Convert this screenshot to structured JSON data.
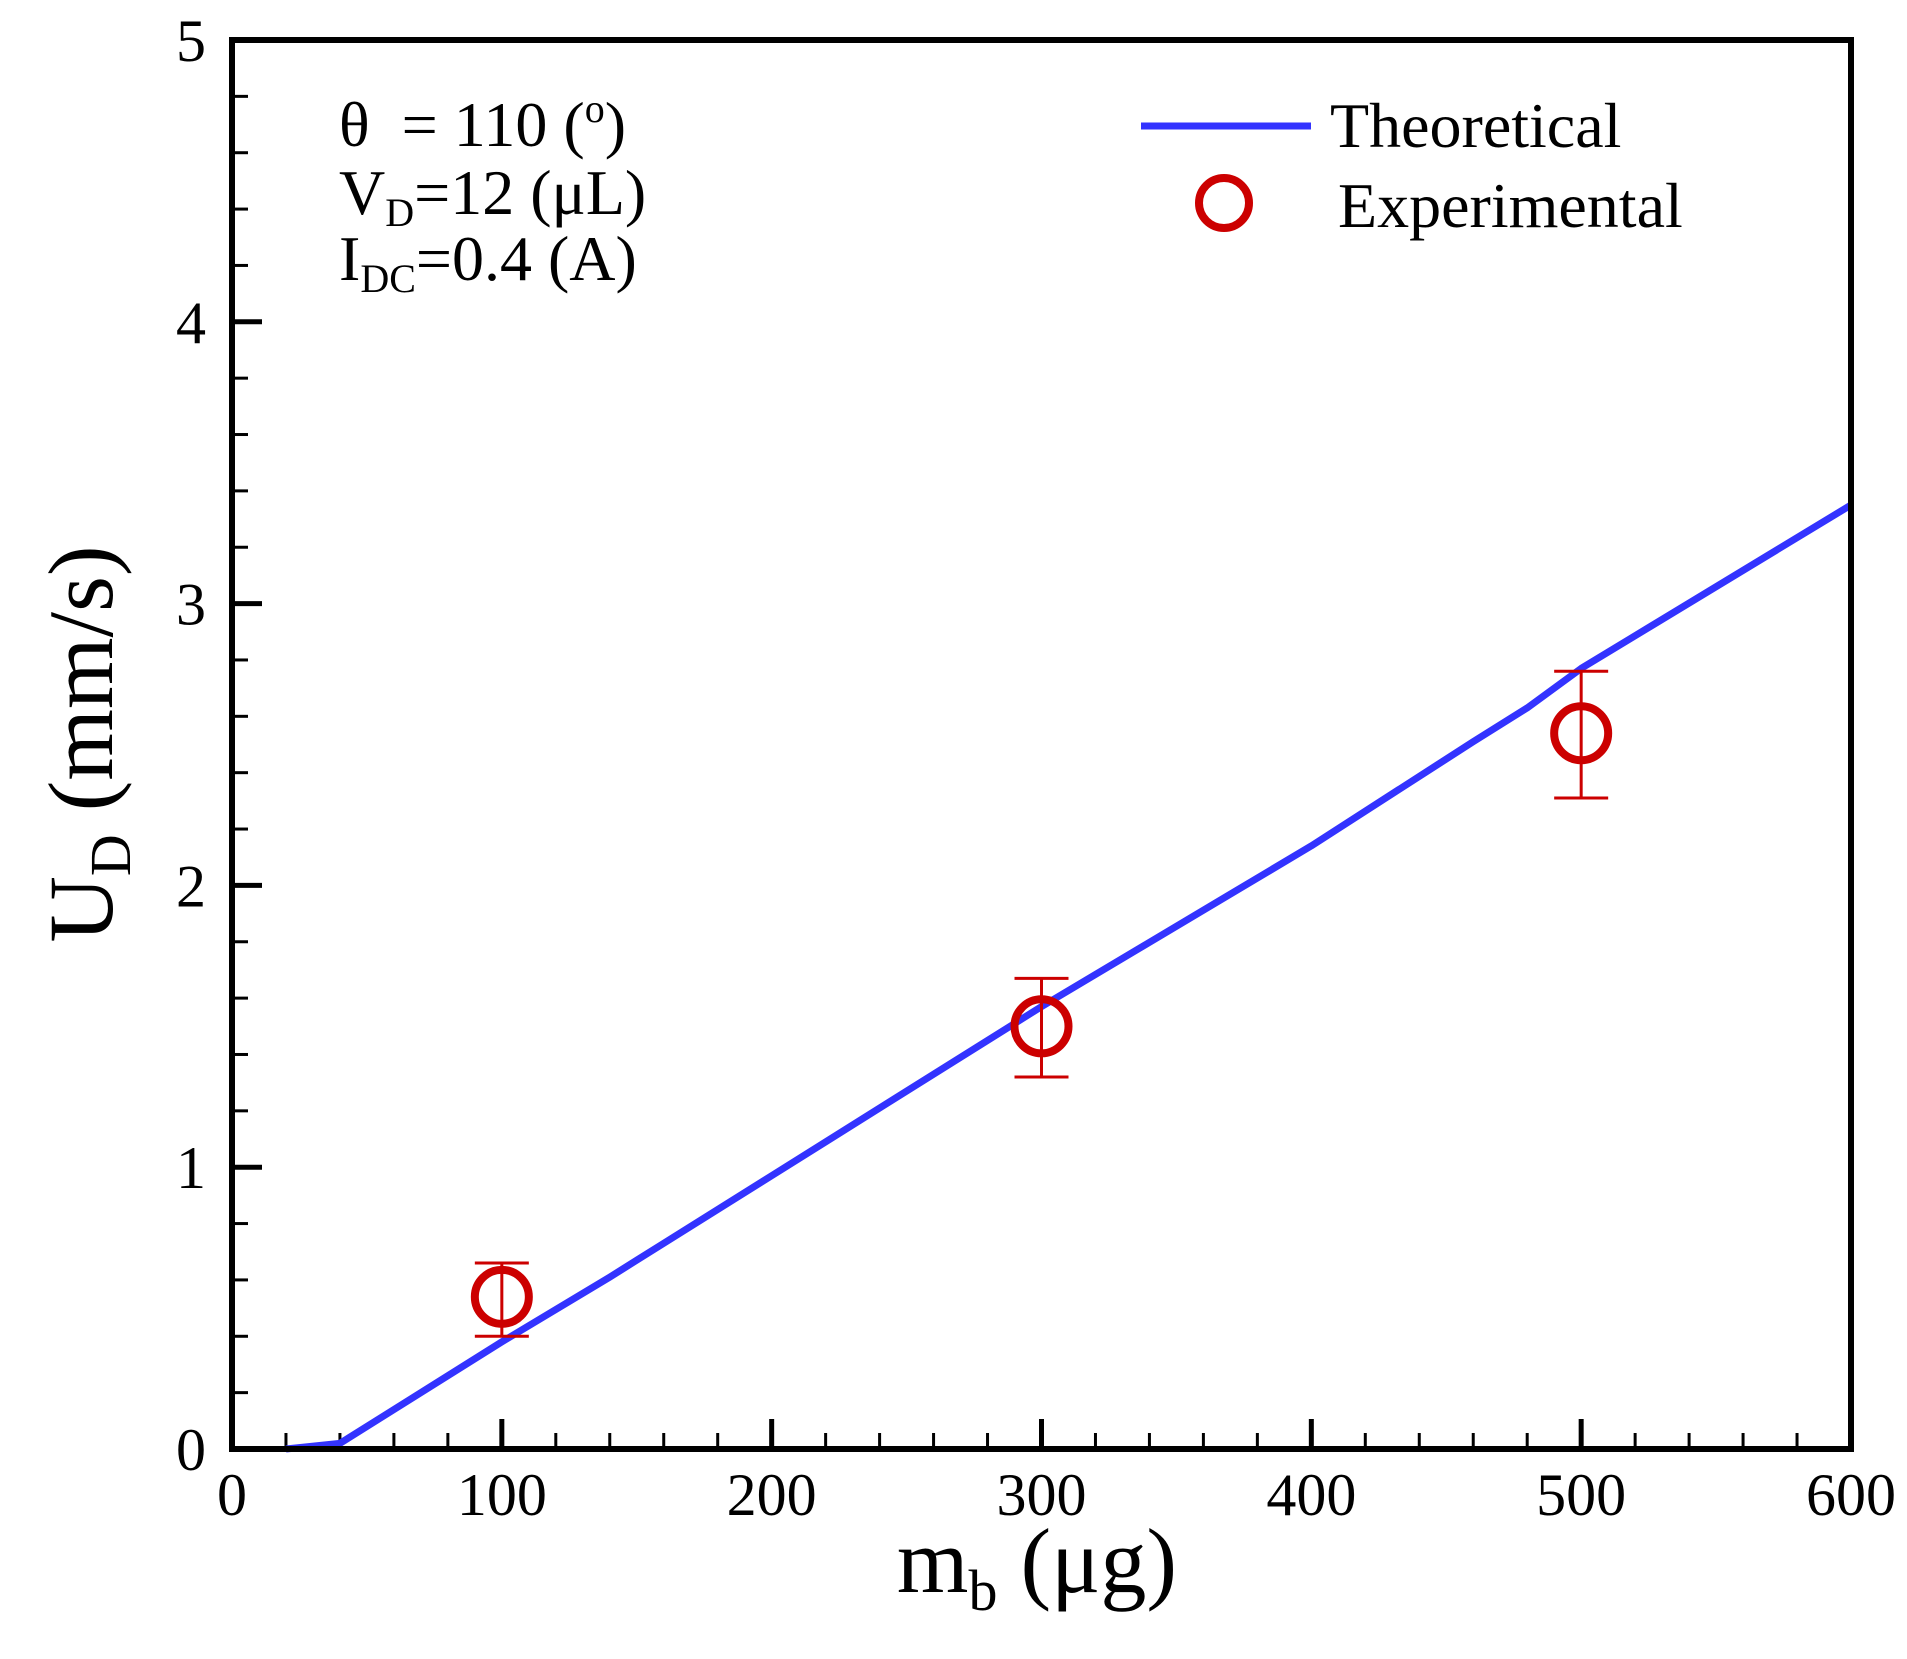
{
  "chart_data": {
    "type": "line",
    "xlabel": {
      "main": "m",
      "sub": "b",
      "rest": " (μg)"
    },
    "ylabel": {
      "main": "U",
      "sub": "D",
      "rest": " (mm/s)"
    },
    "xlim": [
      0,
      600
    ],
    "ylim": [
      0,
      5
    ],
    "xticks": [
      0,
      100,
      200,
      300,
      400,
      500,
      600
    ],
    "xtick_labels": [
      "0",
      "100",
      "200",
      "300",
      "400",
      "500",
      "600"
    ],
    "yticks": [
      0,
      1,
      2,
      3,
      4,
      5
    ],
    "ytick_labels": [
      "0",
      "1",
      "2",
      "3",
      "4",
      "5"
    ],
    "x_minor_step": 20,
    "y_minor_step": 0.2,
    "grid": false,
    "legend": {
      "position": "top-right"
    },
    "series": [
      {
        "name": "Theoretical",
        "style": "line",
        "color": "#3333ff",
        "x": [
          20,
          40,
          100,
          140,
          160,
          200,
          300,
          400,
          460,
          480,
          500,
          600
        ],
        "y": [
          0.0,
          0.02,
          0.38,
          0.61,
          0.73,
          0.97,
          1.57,
          2.14,
          2.51,
          2.63,
          2.77,
          3.35
        ]
      },
      {
        "name": "Experimental",
        "style": "marker",
        "marker": "open-circle",
        "color": "#cc0000",
        "x": [
          100,
          300,
          500
        ],
        "y": [
          0.54,
          1.5,
          2.54
        ],
        "err_low": [
          0.4,
          1.32,
          2.31
        ],
        "err_high": [
          0.66,
          1.67,
          2.76
        ]
      }
    ],
    "annotations": {
      "theta": {
        "symbol": "θ",
        "text": "  = 110 (",
        "sup": "o",
        "end": ")"
      },
      "volume": {
        "main": "V",
        "sub": "D",
        "rest": "=12 (μL)"
      },
      "current": {
        "main": "I",
        "sub": "DC",
        "rest": "=0.4 (A)"
      }
    }
  }
}
